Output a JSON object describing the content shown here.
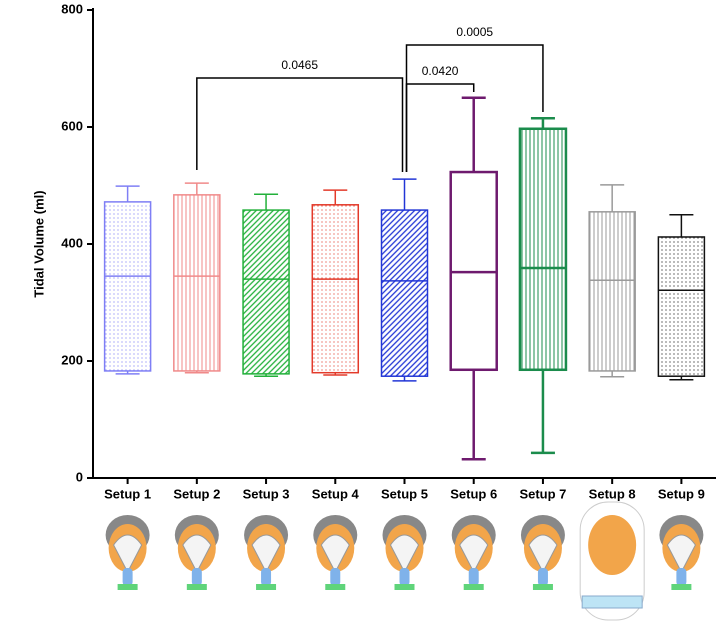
{
  "chart_data": {
    "type": "box",
    "y_label": "Tidal Volume (ml)",
    "categories": [
      "Setup 1",
      "Setup 2",
      "Setup 3",
      "Setup 4",
      "Setup 5",
      "Setup 6",
      "Setup 7",
      "Setup 8",
      "Setup 9"
    ],
    "boxes": [
      {
        "min": 178,
        "q1": 183,
        "median": 345,
        "q3": 472,
        "max": 499,
        "color": "#7f7ff5",
        "pattern": "dots"
      },
      {
        "min": 180,
        "q1": 183,
        "median": 345,
        "q3": 484,
        "max": 504,
        "color": "#f08a8a",
        "pattern": "vertical"
      },
      {
        "min": 174,
        "q1": 178,
        "median": 340,
        "q3": 458,
        "max": 485,
        "color": "#22b03a",
        "pattern": "diagonal"
      },
      {
        "min": 176,
        "q1": 180,
        "median": 340,
        "q3": 467,
        "max": 492,
        "color": "#e33a2a",
        "pattern": "dots"
      },
      {
        "min": 166,
        "q1": 174,
        "median": 337,
        "q3": 458,
        "max": 511,
        "color": "#2236d6",
        "pattern": "diagonal"
      },
      {
        "min": 32,
        "q1": 185,
        "median": 352,
        "q3": 523,
        "max": 650,
        "color": "#6e1a6e",
        "pattern": "none"
      },
      {
        "min": 43,
        "q1": 185,
        "median": 359,
        "q3": 597,
        "max": 615,
        "color": "#1b8c4c",
        "pattern": "vertical"
      },
      {
        "min": 173,
        "q1": 183,
        "median": 338,
        "q3": 455,
        "max": 501,
        "color": "#9a9a9a",
        "pattern": "vertical"
      },
      {
        "min": 168,
        "q1": 174,
        "median": 321,
        "q3": 412,
        "max": 450,
        "color": "#111111",
        "pattern": "dots"
      }
    ],
    "annotations": [
      "0.0465",
      "0.0420",
      "0.0005"
    ],
    "ylim": [
      0,
      800
    ],
    "yticks": [
      0,
      200,
      400,
      600,
      800
    ]
  }
}
